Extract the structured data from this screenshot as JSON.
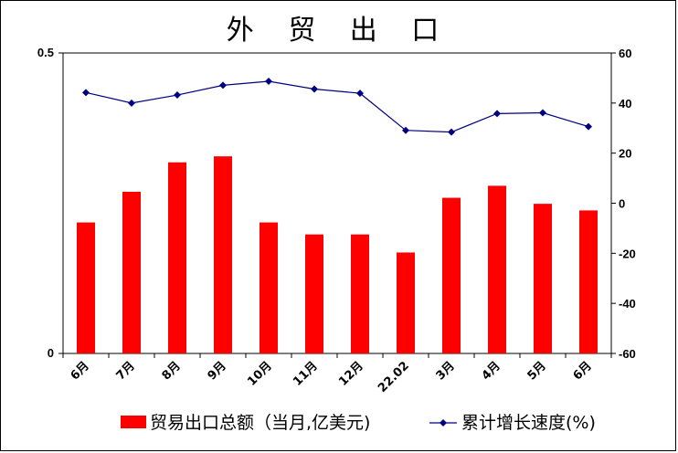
{
  "chart_data": {
    "type": "bar+line",
    "title": "外 贸 出 口",
    "categories": [
      "6月",
      "7月",
      "8月",
      "9月",
      "10月",
      "11月",
      "12月",
      "22.02",
      "3月",
      "4月",
      "5月",
      "6月"
    ],
    "series": [
      {
        "name": "贸易出口总额（当月,亿美元)",
        "type": "bar",
        "axis": "left",
        "color": "#ff0000",
        "values": [
          0.218,
          0.269,
          0.318,
          0.328,
          0.218,
          0.198,
          0.198,
          0.168,
          0.259,
          0.279,
          0.249,
          0.238
        ]
      },
      {
        "name": "累计增长速度(%)",
        "type": "line",
        "axis": "right",
        "color": "#000080",
        "values": [
          44.2,
          40.0,
          43.2,
          47.1,
          48.7,
          45.6,
          43.9,
          29.1,
          28.4,
          35.8,
          36.1,
          30.6
        ]
      }
    ],
    "y_left": {
      "min": 0,
      "max": 0.5,
      "ticks": [
        "0",
        "0.5"
      ],
      "tick_values": [
        0,
        0.5
      ]
    },
    "y_right": {
      "min": -60,
      "max": 60,
      "ticks": [
        "60",
        "40",
        "20",
        "0",
        "-20",
        "-40",
        "-60"
      ],
      "tick_values": [
        60,
        40,
        20,
        0,
        -20,
        -40,
        -60
      ]
    },
    "legend": {
      "position": "bottom"
    },
    "grid": false
  }
}
